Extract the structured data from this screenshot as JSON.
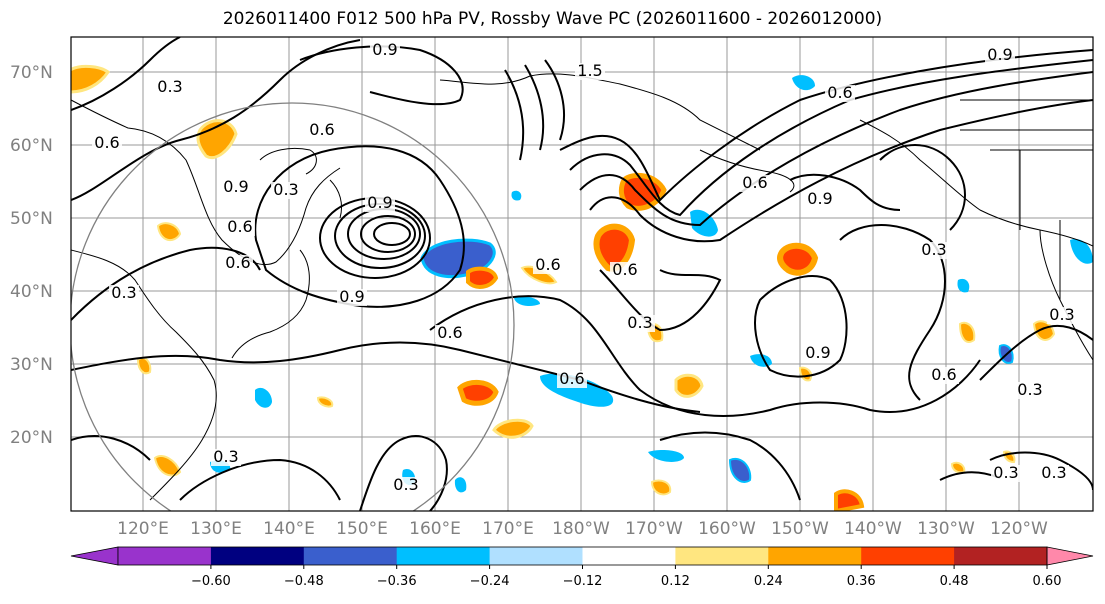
{
  "title": "2026011400 F012 500 hPa PV, Rossby Wave PC (2026011600 - 2026012000)",
  "lat_labels": [
    "70°N",
    "60°N",
    "50°N",
    "40°N",
    "30°N",
    "20°N"
  ],
  "lon_labels": [
    "120°E",
    "130°E",
    "140°E",
    "150°E",
    "160°E",
    "170°E",
    "180°W",
    "170°W",
    "160°W",
    "150°W",
    "140°W",
    "130°W",
    "120°W"
  ],
  "colorbar": {
    "ticks": [
      "−0.60",
      "−0.48",
      "−0.36",
      "−0.24",
      "−0.12",
      "0.12",
      "0.24",
      "0.36",
      "0.48",
      "0.60"
    ],
    "colors": [
      "#9933cc",
      "#000080",
      "#3a5fcd",
      "#00bfff",
      "#b0e0ff",
      "#ffffff",
      "#ffe680",
      "#ffa500",
      "#ff4000",
      "#b22222",
      "#ff88aa"
    ]
  },
  "contour_labels": [
    "0.9",
    "0.3",
    "0.6",
    "1.5",
    "0.9",
    "0.6",
    "0.3",
    "0.6",
    "0.9",
    "0.6",
    "0.6",
    "0.3",
    "0.9",
    "0.6",
    "0.9",
    "0.6",
    "0.6",
    "0.3",
    "0.6",
    "0.3",
    "0.3",
    "0.3",
    "0.3",
    "0.3",
    "0.3",
    "0.9",
    "0.6",
    "0.9",
    "0.3",
    "0.6"
  ]
}
